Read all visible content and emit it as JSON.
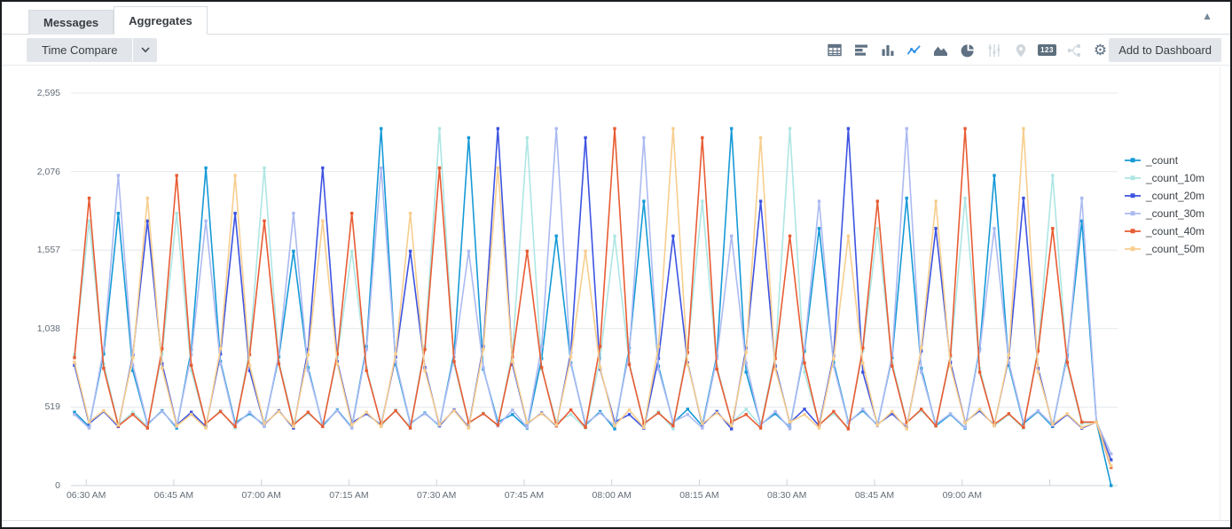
{
  "panel": {
    "collapse_icon": "▲"
  },
  "tabs": [
    {
      "label": "Messages",
      "active": false
    },
    {
      "label": "Aggregates",
      "active": true
    }
  ],
  "toolbar": {
    "time_compare_label": "Time Compare",
    "add_to_dashboard_label": "Add to Dashboard",
    "value_badge_label": "123",
    "accent_color": "#2b8fe8",
    "icon_color": "#5f7183",
    "icon_disabled_color": "#cfd7dd",
    "icons": [
      {
        "name": "table-icon",
        "state": "normal"
      },
      {
        "name": "bar-chart-horizontal-icon",
        "state": "normal"
      },
      {
        "name": "column-chart-icon",
        "state": "normal"
      },
      {
        "name": "line-chart-icon",
        "state": "active"
      },
      {
        "name": "area-chart-icon",
        "state": "normal"
      },
      {
        "name": "pie-chart-icon",
        "state": "normal"
      },
      {
        "name": "box-plot-icon",
        "state": "disabled"
      },
      {
        "name": "map-icon",
        "state": "disabled"
      },
      {
        "name": "single-value-icon",
        "state": "normal"
      },
      {
        "name": "flow-diagram-icon",
        "state": "disabled"
      },
      {
        "name": "settings-gear-icon",
        "state": "normal"
      }
    ]
  },
  "chart_data": {
    "type": "line",
    "title": "",
    "xlabel": "",
    "ylabel": "",
    "grid": true,
    "legend_position": "right",
    "marker": "square",
    "ylim": [
      0,
      2595
    ],
    "y_ticks": [
      {
        "label": "0",
        "value": 0
      },
      {
        "label": "519",
        "value": 519
      },
      {
        "label": "1,038",
        "value": 1038
      },
      {
        "label": "1,557",
        "value": 1557
      },
      {
        "label": "2,076",
        "value": 2076
      },
      {
        "label": "2,595",
        "value": 2595
      }
    ],
    "x_ticks": [
      {
        "label": "06:30 AM",
        "minutes": 2
      },
      {
        "label": "06:45 AM",
        "minutes": 17
      },
      {
        "label": "07:00 AM",
        "minutes": 32
      },
      {
        "label": "07:15 AM",
        "minutes": 47
      },
      {
        "label": "07:30 AM",
        "minutes": 62
      },
      {
        "label": "07:45 AM",
        "minutes": 77
      },
      {
        "label": "08:00 AM",
        "minutes": 92
      },
      {
        "label": "08:15 AM",
        "minutes": 107
      },
      {
        "label": "08:30 AM",
        "minutes": 122
      },
      {
        "label": "08:45 AM",
        "minutes": 137
      },
      {
        "label": "09:00 AM",
        "minutes": 152
      },
      {
        "label": "",
        "minutes": 167
      }
    ],
    "point_interval_minutes": 2.5,
    "base_values": [
      485,
      390,
      870,
      1800,
      760,
      405,
      495,
      380,
      900,
      2100,
      820,
      415,
      475,
      400,
      850,
      1550,
      780,
      395,
      500,
      385,
      920,
      2360,
      800,
      410,
      480,
      395,
      880,
      2300,
      770,
      420,
      470,
      380,
      840,
      1650,
      810,
      400,
      490,
      375,
      910,
      1880,
      790,
      415,
      505,
      395,
      860,
      2360,
      750,
      405,
      475,
      385,
      890,
      1700,
      815,
      420,
      495,
      400,
      845,
      1900,
      775,
      395,
      470,
      380,
      905,
      2050,
      795,
      410,
      490,
      390,
      865,
      1750,
      805,
      400
    ],
    "series": [
      {
        "name": "_count",
        "color": "#169AD7",
        "shift_points": 0,
        "end_value": 0
      },
      {
        "name": "_count_10m",
        "color": "#ADE6E3",
        "shift_points": 4,
        "end_value": 120
      },
      {
        "name": "_count_20m",
        "color": "#3D53E1",
        "shift_points": 8,
        "end_value": 170
      },
      {
        "name": "_count_30m",
        "color": "#ACBAF1",
        "shift_points": 12,
        "end_value": 210
      },
      {
        "name": "_count_40m",
        "color": "#E85C33",
        "shift_points": 16,
        "end_value": 120
      },
      {
        "name": "_count_50m",
        "color": "#F7CE8E",
        "shift_points": 20,
        "end_value": 130
      }
    ]
  }
}
